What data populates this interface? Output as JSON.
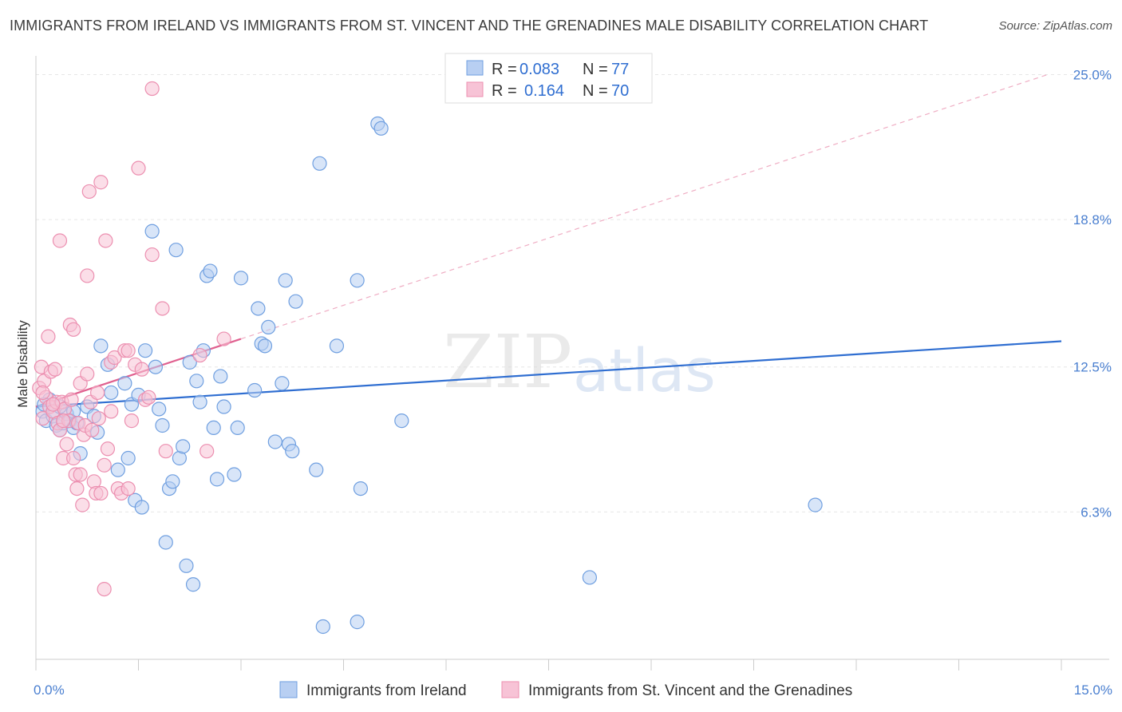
{
  "header": {
    "title": "IMMIGRANTS FROM IRELAND VS IMMIGRANTS FROM ST. VINCENT AND THE GRENADINES MALE DISABILITY CORRELATION CHART",
    "source": "Source: ZipAtlas.com"
  },
  "watermark": {
    "zip": "ZIP",
    "atlas": "atlas"
  },
  "legend": {
    "series": [
      {
        "r_label": "R =",
        "r_value": "0.083",
        "n_label": "N =",
        "n_value": "77"
      },
      {
        "r_label": "R =",
        "r_value": "0.164",
        "n_label": "N =",
        "n_value": "70"
      }
    ]
  },
  "chart_data": {
    "type": "scatter",
    "title": "IMMIGRANTS FROM IRELAND VS IMMIGRANTS FROM ST. VINCENT AND THE GRENADINES MALE DISABILITY CORRELATION CHART",
    "ylabel": "Male Disability",
    "xlim": [
      0,
      15
    ],
    "ylim": [
      0,
      25.8
    ],
    "x_tick_labels": [
      {
        "value": 0,
        "label": "0.0%"
      },
      {
        "value": 15,
        "label": "15.0%"
      }
    ],
    "y_tick_labels": [
      {
        "value": 6.3,
        "label": "6.3%"
      },
      {
        "value": 12.5,
        "label": "12.5%"
      },
      {
        "value": 18.8,
        "label": "18.8%"
      },
      {
        "value": 25.0,
        "label": "25.0%"
      }
    ],
    "grid": true,
    "legend_position": "top-center",
    "series": [
      {
        "name": "Immigrants from Ireland",
        "color": "#6f9fe0",
        "fill": "#b8cff2",
        "line_color": "#2f6ed1",
        "trend": {
          "x": [
            0,
            15
          ],
          "y": [
            10.8,
            13.6
          ]
        },
        "points": [
          [
            0.1,
            10.6
          ],
          [
            0.15,
            10.2
          ],
          [
            0.2,
            11.1
          ],
          [
            0.25,
            10.4
          ],
          [
            0.3,
            10.0
          ],
          [
            0.35,
            9.8
          ],
          [
            0.4,
            10.1
          ],
          [
            0.45,
            10.5
          ],
          [
            0.5,
            10.2
          ],
          [
            0.55,
            9.9
          ],
          [
            0.55,
            10.6
          ],
          [
            0.65,
            8.8
          ],
          [
            0.75,
            10.8
          ],
          [
            0.85,
            10.4
          ],
          [
            0.9,
            9.7
          ],
          [
            0.95,
            13.4
          ],
          [
            1.05,
            12.6
          ],
          [
            1.1,
            11.4
          ],
          [
            1.2,
            8.1
          ],
          [
            1.3,
            11.8
          ],
          [
            1.35,
            8.6
          ],
          [
            1.4,
            10.9
          ],
          [
            1.45,
            6.8
          ],
          [
            1.5,
            11.3
          ],
          [
            1.55,
            6.5
          ],
          [
            1.6,
            13.2
          ],
          [
            1.7,
            18.3
          ],
          [
            1.75,
            12.5
          ],
          [
            1.8,
            10.7
          ],
          [
            1.85,
            10.0
          ],
          [
            1.9,
            5.0
          ],
          [
            1.95,
            7.3
          ],
          [
            2.0,
            7.6
          ],
          [
            2.05,
            17.5
          ],
          [
            2.1,
            8.6
          ],
          [
            2.15,
            9.1
          ],
          [
            2.2,
            4.0
          ],
          [
            2.25,
            12.7
          ],
          [
            2.3,
            3.2
          ],
          [
            2.35,
            11.9
          ],
          [
            2.4,
            11.0
          ],
          [
            2.45,
            13.2
          ],
          [
            2.5,
            16.4
          ],
          [
            2.55,
            16.6
          ],
          [
            2.6,
            9.9
          ],
          [
            2.65,
            7.7
          ],
          [
            2.7,
            12.1
          ],
          [
            2.75,
            10.8
          ],
          [
            2.9,
            7.9
          ],
          [
            2.95,
            9.9
          ],
          [
            3.0,
            16.3
          ],
          [
            3.2,
            11.5
          ],
          [
            3.25,
            15.0
          ],
          [
            3.3,
            13.5
          ],
          [
            3.35,
            13.4
          ],
          [
            3.4,
            14.2
          ],
          [
            3.5,
            9.3
          ],
          [
            3.6,
            11.8
          ],
          [
            3.65,
            16.2
          ],
          [
            3.7,
            9.2
          ],
          [
            3.75,
            8.9
          ],
          [
            3.8,
            15.3
          ],
          [
            4.1,
            8.1
          ],
          [
            4.15,
            21.2
          ],
          [
            4.2,
            1.4
          ],
          [
            4.4,
            13.4
          ],
          [
            4.7,
            16.2
          ],
          [
            4.75,
            7.3
          ],
          [
            4.7,
            1.6
          ],
          [
            5.0,
            22.9
          ],
          [
            5.05,
            22.7
          ],
          [
            5.35,
            10.2
          ],
          [
            8.1,
            3.5
          ],
          [
            11.4,
            6.6
          ],
          [
            0.12,
            10.9
          ],
          [
            0.6,
            10.1
          ],
          [
            0.35,
            10.8
          ]
        ]
      },
      {
        "name": "Immigrants from St. Vincent and the Grenadines",
        "color": "#ec8fb0",
        "fill": "#f7c3d6",
        "line_color": "#e0608f",
        "trend": {
          "x": [
            0,
            3.0
          ],
          "y": [
            10.8,
            13.7
          ],
          "dashed_extension": {
            "x": [
              3.0,
              14.8
            ],
            "y": [
              13.7,
              25.0
            ]
          }
        },
        "points": [
          [
            0.05,
            11.6
          ],
          [
            0.08,
            12.5
          ],
          [
            0.1,
            10.3
          ],
          [
            0.12,
            11.9
          ],
          [
            0.15,
            11.2
          ],
          [
            0.18,
            13.8
          ],
          [
            0.2,
            10.8
          ],
          [
            0.22,
            12.3
          ],
          [
            0.25,
            10.6
          ],
          [
            0.28,
            12.4
          ],
          [
            0.3,
            11.0
          ],
          [
            0.32,
            10.1
          ],
          [
            0.35,
            9.8
          ],
          [
            0.35,
            17.9
          ],
          [
            0.38,
            11.0
          ],
          [
            0.4,
            8.6
          ],
          [
            0.42,
            10.7
          ],
          [
            0.45,
            9.2
          ],
          [
            0.48,
            10.2
          ],
          [
            0.5,
            14.3
          ],
          [
            0.52,
            11.1
          ],
          [
            0.55,
            14.1
          ],
          [
            0.55,
            8.6
          ],
          [
            0.58,
            7.9
          ],
          [
            0.6,
            7.3
          ],
          [
            0.62,
            10.1
          ],
          [
            0.65,
            11.8
          ],
          [
            0.65,
            7.9
          ],
          [
            0.68,
            6.6
          ],
          [
            0.7,
            9.6
          ],
          [
            0.72,
            10.0
          ],
          [
            0.75,
            16.4
          ],
          [
            0.75,
            12.2
          ],
          [
            0.78,
            20.0
          ],
          [
            0.8,
            11.0
          ],
          [
            0.82,
            9.8
          ],
          [
            0.85,
            7.6
          ],
          [
            0.88,
            7.1
          ],
          [
            0.9,
            11.4
          ],
          [
            0.92,
            10.3
          ],
          [
            0.95,
            7.1
          ],
          [
            0.95,
            20.4
          ],
          [
            1.0,
            8.3
          ],
          [
            1.0,
            3.0
          ],
          [
            1.02,
            17.9
          ],
          [
            1.05,
            9.0
          ],
          [
            1.1,
            10.6
          ],
          [
            1.1,
            12.7
          ],
          [
            1.15,
            12.9
          ],
          [
            1.2,
            7.3
          ],
          [
            1.25,
            7.1
          ],
          [
            1.3,
            13.2
          ],
          [
            1.35,
            13.2
          ],
          [
            1.35,
            7.3
          ],
          [
            1.4,
            10.2
          ],
          [
            1.45,
            12.6
          ],
          [
            1.5,
            21.0
          ],
          [
            1.55,
            12.4
          ],
          [
            1.6,
            11.1
          ],
          [
            1.65,
            11.2
          ],
          [
            1.7,
            24.4
          ],
          [
            1.7,
            17.3
          ],
          [
            1.85,
            15.0
          ],
          [
            1.9,
            8.9
          ],
          [
            2.4,
            13.0
          ],
          [
            2.5,
            8.9
          ],
          [
            2.75,
            13.7
          ],
          [
            0.1,
            11.4
          ],
          [
            0.25,
            10.9
          ],
          [
            0.4,
            10.2
          ]
        ]
      }
    ]
  },
  "bottom_legend": {
    "items": [
      {
        "label": "Immigrants from Ireland"
      },
      {
        "label": "Immigrants from St. Vincent and the Grenadines"
      }
    ]
  }
}
